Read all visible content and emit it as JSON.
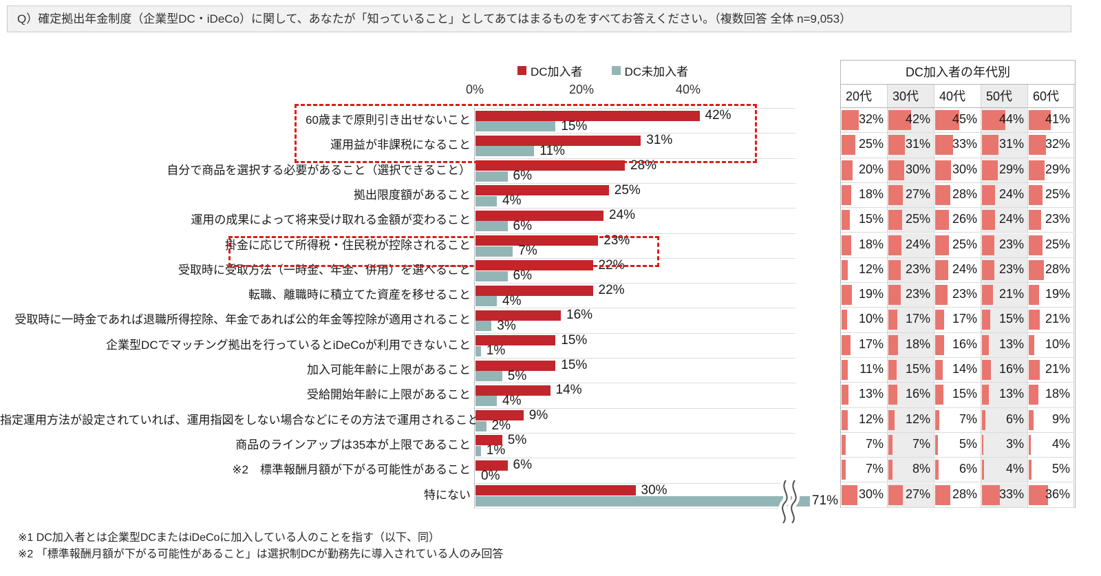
{
  "question": {
    "text": "Q）確定拠出年金制度（企業型DC・iDeCo）に関して、あなたが「知っていること」としてあてはまるものをすべてお答えください。（複数回答 全体 n=9,053）"
  },
  "colors": {
    "dc_member": "#c0262c",
    "dc_nonmember": "#94b5b6",
    "table_bar": "#e8766e",
    "highlight_box": "#dd1c1c",
    "col_alt_bg": "#ececec",
    "grid": "#dcdcdc"
  },
  "axis": {
    "ticks": [
      "0%",
      "20%",
      "40%"
    ],
    "tick_values": [
      0,
      20,
      40
    ]
  },
  "footnotes": [
    "※1 DC加入者とは企業型DCまたはiDeCoに加入している人のことを指す（以下、同）",
    "※2 「標準報酬月額が下がる可能性があること」は選択制DCが勤務先に導入されている人のみ回答"
  ],
  "chart_data": {
    "type": "bar",
    "orientation": "horizontal",
    "xlim": [
      0,
      40
    ],
    "grid": "row-separators",
    "legend_position": "top",
    "categories": [
      "60歳まで原則引き出せないこと",
      "運用益が非課税になること",
      "自分で商品を選択する必要があること（選択できること）",
      "拠出限度額があること",
      "運用の成果によって将来受け取れる金額が変わること",
      "掛金に応じて所得税・住民税が控除されること",
      "受取時に受取方法（一時金、年金、併用）を選べること",
      "転職、離職時に積立てた資産を移せること",
      "受取時に一時金であれば退職所得控除、年金であれば公的年金等控除が適用されること",
      "企業型DCでマッチング拠出を行っているとiDeCoが利用できないこと",
      "加入可能年齢に上限があること",
      "受給開始年齢に上限があること",
      "指定運用方法が設定されていれば、運用指図をしない場合などにその方法で運用されること",
      "商品のラインアップは35本が上限であること",
      "※2　標準報酬月額が下がる可能性があること",
      "特にない"
    ],
    "series": [
      {
        "name": "DC加入者",
        "color": "#c0262c",
        "values": [
          42,
          31,
          28,
          25,
          24,
          23,
          22,
          22,
          16,
          15,
          15,
          14,
          9,
          5,
          6,
          30
        ]
      },
      {
        "name": "DC未加入者",
        "color": "#94b5b6",
        "values": [
          15,
          11,
          6,
          4,
          6,
          7,
          6,
          4,
          3,
          1,
          5,
          4,
          2,
          1,
          0,
          71
        ]
      }
    ],
    "axis_break": {
      "series": "DC未加入者",
      "category": "特にない",
      "value": 71
    },
    "highlighted_row_indexes": [
      [
        0,
        1
      ],
      [
        5
      ]
    ],
    "age_table": {
      "title": "DC加入者の年代別",
      "columns": [
        "20代",
        "30代",
        "40代",
        "50代",
        "60代"
      ],
      "rows": [
        [
          32,
          42,
          45,
          44,
          41
        ],
        [
          25,
          31,
          33,
          31,
          32
        ],
        [
          20,
          30,
          30,
          29,
          29
        ],
        [
          18,
          27,
          28,
          24,
          25
        ],
        [
          15,
          25,
          26,
          24,
          23
        ],
        [
          18,
          24,
          25,
          23,
          25
        ],
        [
          12,
          23,
          24,
          23,
          28
        ],
        [
          19,
          23,
          23,
          21,
          19
        ],
        [
          10,
          17,
          17,
          15,
          21
        ],
        [
          17,
          18,
          16,
          13,
          10
        ],
        [
          11,
          15,
          14,
          16,
          21
        ],
        [
          13,
          16,
          15,
          13,
          18
        ],
        [
          12,
          12,
          7,
          6,
          9
        ],
        [
          7,
          7,
          5,
          3,
          4
        ],
        [
          7,
          8,
          6,
          4,
          5
        ],
        [
          30,
          27,
          28,
          33,
          36
        ]
      ]
    }
  }
}
